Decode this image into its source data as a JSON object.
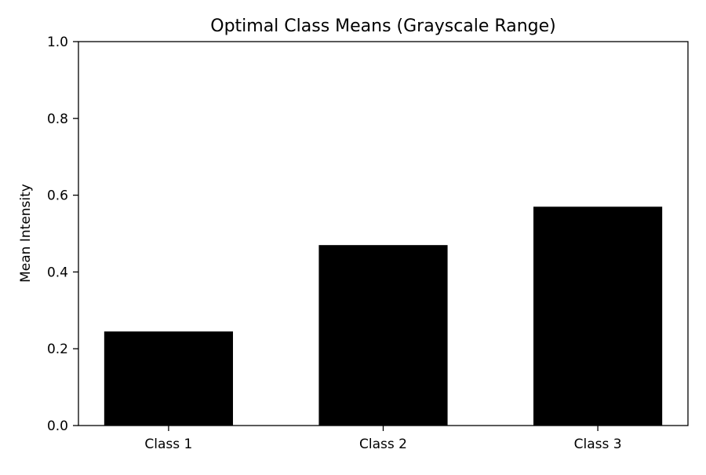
{
  "chart_data": {
    "type": "bar",
    "title": "Optimal Class Means (Grayscale Range)",
    "xlabel": "",
    "ylabel": "Mean Intensity",
    "categories": [
      "Class 1",
      "Class 2",
      "Class 3"
    ],
    "values": [
      0.245,
      0.47,
      0.57
    ],
    "ylim": [
      0.0,
      1.0
    ],
    "yticks": [
      "0.0",
      "0.2",
      "0.4",
      "0.6",
      "0.8",
      "1.0"
    ],
    "bar_color": "#000000",
    "grid": false,
    "legend": "none"
  }
}
